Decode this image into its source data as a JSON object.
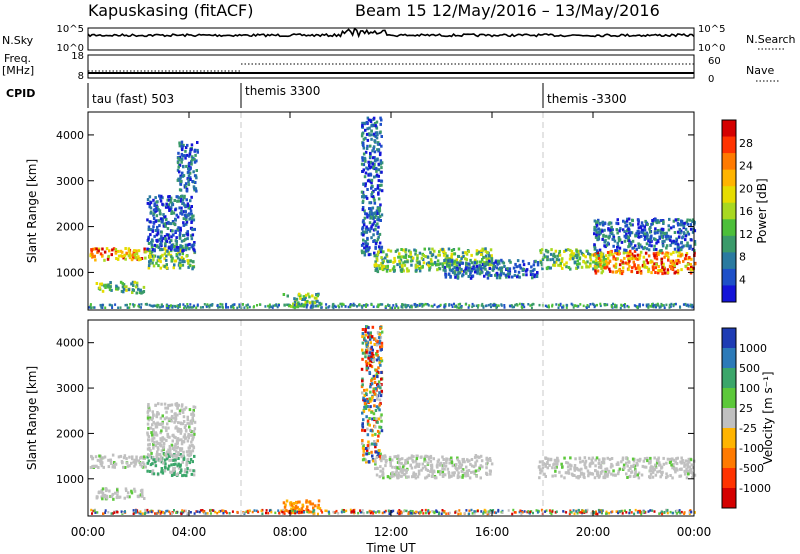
{
  "header": {
    "station": "Kapuskasing (fitACF)",
    "beam_date": "Beam 15  12/May/2016 – 13/May/2016"
  },
  "nsky_panel": {
    "label": "N.Sky",
    "left_ticks": [
      "10^5",
      "10^0"
    ],
    "right_ticks": [
      "10^5",
      "10^0"
    ],
    "right_label": "N.Search"
  },
  "freq_panel": {
    "label_top": "Freq.",
    "label_unit": "[MHz]",
    "left_ticks": [
      "18",
      "8"
    ],
    "right_ticks": [
      "60",
      "0"
    ],
    "right_label": "Nave"
  },
  "cpid": {
    "label": "CPID",
    "segments": [
      "tau (fast) 503",
      "themis 3300",
      "themis -3300"
    ]
  },
  "chart_data": [
    {
      "type": "heatmap",
      "name": "power",
      "ylabel": "Slant Range [km]",
      "xlabel": "",
      "ylim": [
        180,
        4500
      ],
      "yticks": [
        1000,
        2000,
        3000,
        4000
      ],
      "xlim_hours": [
        0,
        24
      ],
      "colorbar": {
        "label": "Power [dB]",
        "ticks": [
          "28",
          "24",
          "20",
          "16",
          "12",
          "8",
          "4"
        ],
        "colors": [
          "#d40000",
          "#ff3300",
          "#ff7a00",
          "#ffb400",
          "#e6dc00",
          "#a8d820",
          "#4cbf3a",
          "#3a9a6a",
          "#2a7aa0",
          "#1e50c8",
          "#1414d8"
        ]
      },
      "regions": [
        {
          "t": [
            0.0,
            2.3
          ],
          "r": [
            1280,
            1560
          ],
          "level": "high"
        },
        {
          "t": [
            0.3,
            2.2
          ],
          "r": [
            580,
            820
          ],
          "level": "mid"
        },
        {
          "t": [
            2.3,
            4.2
          ],
          "r": [
            1100,
            1600
          ],
          "level": "mid"
        },
        {
          "t": [
            2.3,
            4.2
          ],
          "r": [
            1500,
            2700
          ],
          "level": "low"
        },
        {
          "t": [
            3.5,
            4.3
          ],
          "r": [
            2800,
            3900
          ],
          "level": "low"
        },
        {
          "t": [
            7.7,
            9.2
          ],
          "r": [
            280,
            560
          ],
          "level": "mid"
        },
        {
          "t": [
            10.8,
            11.6
          ],
          "r": [
            1400,
            4400
          ],
          "level": "low"
        },
        {
          "t": [
            11.3,
            16.0
          ],
          "r": [
            1050,
            1550
          ],
          "level": "mid"
        },
        {
          "t": [
            14.0,
            17.8
          ],
          "r": [
            900,
            1300
          ],
          "level": "low"
        },
        {
          "t": [
            17.8,
            20.5
          ],
          "r": [
            1100,
            1550
          ],
          "level": "mid"
        },
        {
          "t": [
            20.0,
            24.0
          ],
          "r": [
            1000,
            1500
          ],
          "level": "high"
        },
        {
          "t": [
            20.0,
            24.0
          ],
          "r": [
            1500,
            2200
          ],
          "level": "low"
        }
      ]
    },
    {
      "type": "heatmap",
      "name": "velocity",
      "ylabel": "Slant Range [km]",
      "xlabel": "Time UT",
      "ylim": [
        180,
        4500
      ],
      "yticks": [
        1000,
        2000,
        3000,
        4000
      ],
      "xticks": [
        "00:00",
        "04:00",
        "08:00",
        "12:00",
        "16:00",
        "20:00",
        "00:00"
      ],
      "xlim_hours": [
        0,
        24
      ],
      "colorbar": {
        "label": "Velocity [m s⁻¹]",
        "ticks": [
          "1000",
          "500",
          "100",
          "25",
          "-25",
          "-100",
          "-500",
          "-1000"
        ],
        "colors": [
          "#1e3cb4",
          "#2c7ab8",
          "#3ba66a",
          "#5cc83a",
          "#c0c0c0",
          "#ffb400",
          "#ff7a00",
          "#ff3300",
          "#d40000"
        ]
      },
      "regions": [
        {
          "t": [
            0.0,
            2.3
          ],
          "r": [
            1280,
            1560
          ],
          "level": "ground"
        },
        {
          "t": [
            0.3,
            2.2
          ],
          "r": [
            580,
            820
          ],
          "level": "ground"
        },
        {
          "t": [
            2.3,
            4.2
          ],
          "r": [
            1100,
            1600
          ],
          "level": "pos"
        },
        {
          "t": [
            2.3,
            4.2
          ],
          "r": [
            1500,
            2700
          ],
          "level": "ground"
        },
        {
          "t": [
            7.7,
            9.2
          ],
          "r": [
            280,
            560
          ],
          "level": "neg"
        },
        {
          "t": [
            10.8,
            11.6
          ],
          "r": [
            1400,
            4400
          ],
          "level": "mixed"
        },
        {
          "t": [
            11.3,
            16.0
          ],
          "r": [
            1050,
            1550
          ],
          "level": "ground"
        },
        {
          "t": [
            17.8,
            24.0
          ],
          "r": [
            1050,
            1500
          ],
          "level": "ground"
        }
      ]
    }
  ],
  "time_axis": {
    "label": "Time UT",
    "ticks": [
      "00:00",
      "04:00",
      "08:00",
      "12:00",
      "16:00",
      "20:00",
      "00:00"
    ]
  }
}
